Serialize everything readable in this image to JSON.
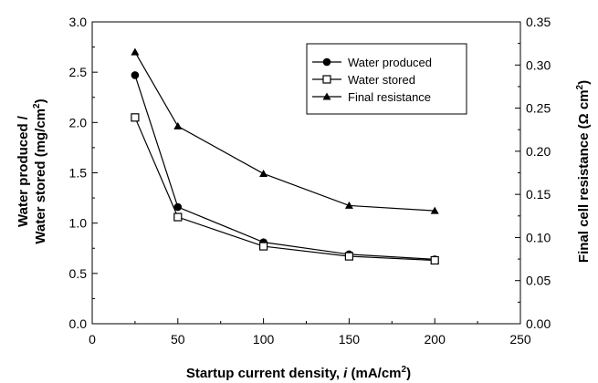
{
  "chart_data": {
    "type": "line",
    "title": "",
    "xlabel": "Startup current density, i (mA/cm2)",
    "xlabel_parts": {
      "prefix": "Startup current density, ",
      "var": "i",
      "units_open": " (mA/cm",
      "sup": "2",
      "units_close": ")"
    },
    "ylabel_left": "Water produced / Water stored (mg/cm2)",
    "ylabel_left_parts": {
      "line1": "Water produced /",
      "line2_main": "Water stored (mg/cm",
      "line2_sup": "2",
      "line2_close": ")"
    },
    "ylabel_right": "Final cell resistance (Ω cm2)",
    "ylabel_right_parts": {
      "main": "Final cell resistance (Ω cm",
      "sup": "2",
      "close": ")"
    },
    "xlim": [
      0,
      250
    ],
    "ylim_left": [
      0,
      3.0
    ],
    "ylim_right": [
      0,
      0.35
    ],
    "x_ticks": [
      "0",
      "50",
      "100",
      "150",
      "200",
      "250"
    ],
    "y_left_ticks": [
      "0.0",
      "0.5",
      "1.0",
      "1.5",
      "2.0",
      "2.5",
      "3.0"
    ],
    "y_right_ticks": [
      "0.00",
      "0.05",
      "0.10",
      "0.15",
      "0.20",
      "0.25",
      "0.30",
      "0.35"
    ],
    "grid": false,
    "legend_position": "top-right",
    "series": [
      {
        "name": "Water produced",
        "axis": "left",
        "marker": "filled-circle",
        "x": [
          25,
          50,
          100,
          150,
          200
        ],
        "values": [
          2.47,
          1.16,
          0.81,
          0.69,
          0.64
        ]
      },
      {
        "name": "Water stored",
        "axis": "left",
        "marker": "open-square",
        "x": [
          25,
          50,
          100,
          150,
          200
        ],
        "values": [
          2.05,
          1.06,
          0.77,
          0.67,
          0.63
        ]
      },
      {
        "name": "Final resistance",
        "axis": "right",
        "marker": "filled-triangle",
        "x": [
          25,
          50,
          100,
          150,
          200
        ],
        "values": [
          0.315,
          0.229,
          0.174,
          0.137,
          0.131
        ]
      }
    ]
  }
}
